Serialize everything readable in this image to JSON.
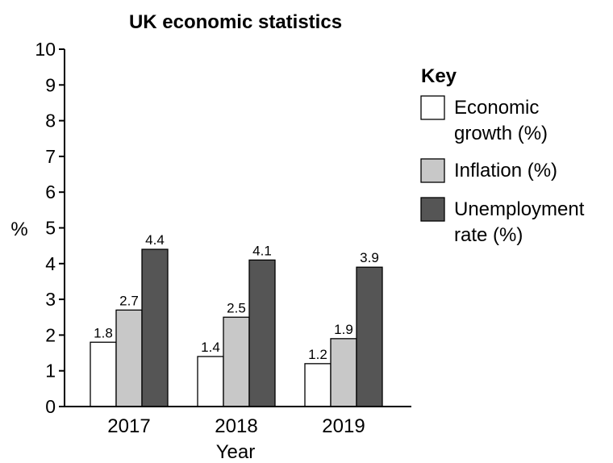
{
  "chart_data": {
    "type": "bar",
    "title": "UK economic statistics",
    "xlabel": "Year",
    "ylabel": "%",
    "ylim": [
      0,
      10
    ],
    "yticks": [
      0,
      1,
      2,
      3,
      4,
      5,
      6,
      7,
      8,
      9,
      10
    ],
    "categories": [
      "2017",
      "2018",
      "2019"
    ],
    "legend_title": "Key",
    "legend_position": "right",
    "series": [
      {
        "name_lines": [
          "Economic",
          "growth (%)"
        ],
        "color": "#ffffff",
        "values": [
          1.8,
          1.4,
          1.2
        ],
        "labels": [
          "1.8",
          "1.4",
          "1.2"
        ]
      },
      {
        "name_lines": [
          "Inflation (%)"
        ],
        "color": "#c8c8c8",
        "values": [
          2.7,
          2.5,
          1.9
        ],
        "labels": [
          "2.7",
          "2.5",
          "1.9"
        ]
      },
      {
        "name_lines": [
          "Unemployment",
          "rate (%)"
        ],
        "color": "#555555",
        "values": [
          4.4,
          4.1,
          3.9
        ],
        "labels": [
          "4.4",
          "4.1",
          "3.9"
        ]
      }
    ]
  }
}
